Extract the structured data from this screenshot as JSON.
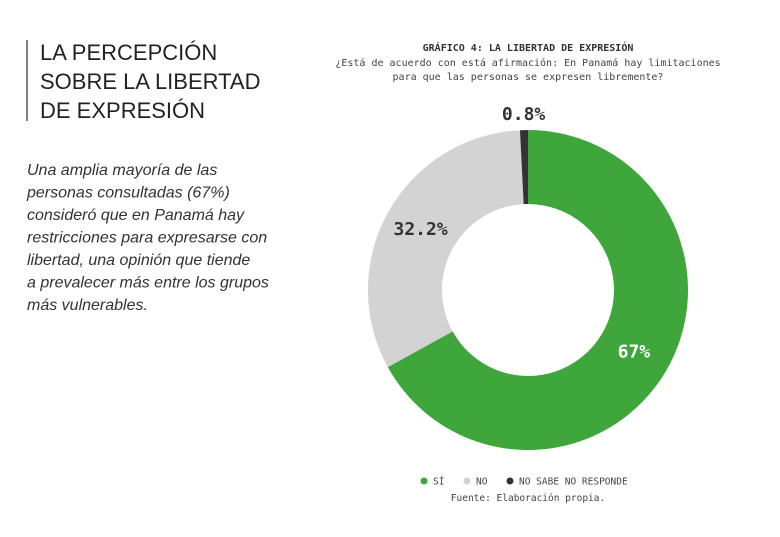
{
  "heading": [
    "LA PERCEPCIÓN",
    "SOBRE LA LIBERTAD",
    "DE EXPRESIÓN"
  ],
  "body": [
    "Una amplia mayoría de las",
    "personas consultadas (67%)",
    "consideró que en Panamá hay",
    "restricciones para expresarse con",
    "libertad, una opinión que tiende",
    "a prevalecer más entre los grupos",
    "más vulnerables."
  ],
  "chart_data": {
    "type": "donut",
    "title": "GRÁFICO 4: LA LIBERTAD DE EXPRESIÓN",
    "subtitle": [
      "¿Está de acuerdo con está afirmación: En Panamá hay limitaciones",
      "para que las personas se expresen libremente?"
    ],
    "categories": [
      "SÍ",
      "NO",
      "NO SABE NO RESPONDE"
    ],
    "values": [
      67,
      32.2,
      0.8
    ],
    "value_labels": [
      "67%",
      "32.2%",
      "0.8%"
    ],
    "colors": [
      "#3ea63a",
      "#d3d3d3",
      "#333333"
    ],
    "source": "Fuente: Elaboración propia."
  }
}
